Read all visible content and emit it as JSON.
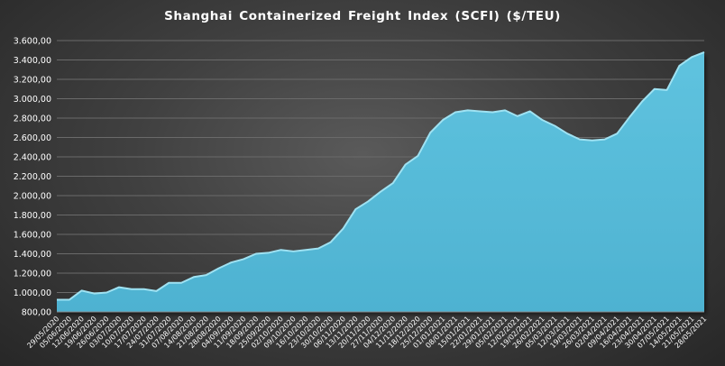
{
  "chart_data": {
    "type": "area",
    "title": "Shanghai Containerized Freight Index  (SCFI) ($/TEU)",
    "xlabel": "",
    "ylabel": "",
    "ylim": [
      800,
      3600
    ],
    "yticks": [
      "800,00",
      "1.000,00",
      "1.200,00",
      "1.400,00",
      "1.600,00",
      "1.800,00",
      "2.000,00",
      "2.200,00",
      "2.400,00",
      "2.600,00",
      "2.800,00",
      "3.000,00",
      "3.200,00",
      "3.400,00",
      "3.600,00"
    ],
    "grid": "horizontal",
    "legend": "none",
    "colors": {
      "fill": "#56bbd8",
      "line": "#9fe2f2",
      "grid": "#6a6a6a",
      "text": "#ffffff"
    },
    "x": [
      "29/05/2020",
      "05/06/2020",
      "12/06/2020",
      "19/06/2020",
      "26/06/2020",
      "03/07/2020",
      "10/07/2020",
      "17/07/2020",
      "24/07/2020",
      "31/07/2020",
      "07/08/2020",
      "14/08/2020",
      "21/08/2020",
      "28/08/2020",
      "04/09/2020",
      "11/09/2020",
      "18/09/2020",
      "25/09/2020",
      "02/10/2020",
      "09/10/2020",
      "16/10/2020",
      "23/10/2020",
      "30/10/2020",
      "06/11/2020",
      "13/11/2020",
      "20/11/2020",
      "27/11/2020",
      "04/12/2020",
      "11/12/2020",
      "18/12/2020",
      "25/12/2020",
      "01/01/2021",
      "08/01/2021",
      "15/01/2021",
      "22/01/2021",
      "29/01/2021",
      "05/02/2021",
      "12/02/2021",
      "19/02/2021",
      "26/02/2021",
      "05/03/2021",
      "12/03/2021",
      "19/03/2021",
      "26/03/2021",
      "02/04/2021",
      "09/04/2021",
      "16/04/2021",
      "23/04/2021",
      "30/04/2021",
      "07/05/2021",
      "14/05/2021",
      "21/05/2021",
      "28/05/2021"
    ],
    "values": [
      925,
      925,
      1020,
      990,
      1000,
      1055,
      1035,
      1035,
      1015,
      1100,
      1100,
      1160,
      1180,
      1250,
      1310,
      1345,
      1400,
      1410,
      1440,
      1425,
      1440,
      1455,
      1520,
      1660,
      1860,
      1940,
      2040,
      2130,
      2320,
      2410,
      2650,
      2780,
      2860,
      2880,
      2870,
      2860,
      2880,
      2820,
      2870,
      2780,
      2720,
      2640,
      2580,
      2570,
      2580,
      2640,
      2810,
      2970,
      3100,
      3090,
      3340,
      3430,
      3480
    ]
  }
}
